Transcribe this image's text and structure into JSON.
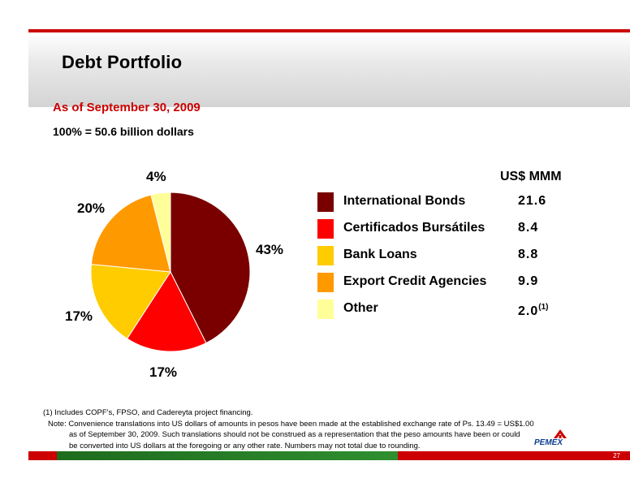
{
  "slide": {
    "title": "Debt Portfolio",
    "as_of": "As of September 30, 2009",
    "total": "100% = 50.6 billion dollars",
    "page_number": "27"
  },
  "colors": {
    "accent_red": "#cc0000",
    "green": "#2f8f2f"
  },
  "chart_data": {
    "type": "pie",
    "unit_header": "US$ MMM",
    "series": [
      {
        "name": "International Bonds",
        "value": 21.6,
        "value_label": "21.6",
        "percent_label": "43%",
        "color": "#7a0000"
      },
      {
        "name": "Certificados Bursátiles",
        "value": 8.4,
        "value_label": "8.4",
        "percent_label": "17%",
        "color": "#ff0000"
      },
      {
        "name": "Bank Loans",
        "value": 8.8,
        "value_label": "8.8",
        "percent_label": "17%",
        "color": "#ffcc00"
      },
      {
        "name": "Export Credit Agencies",
        "value": 9.9,
        "value_label": "9.9",
        "percent_label": "20%",
        "color": "#ff9900"
      },
      {
        "name": "Other",
        "value": 2.0,
        "value_label": "2.0",
        "value_note": "(1)",
        "percent_label": "4%",
        "color": "#ffff99"
      }
    ]
  },
  "footnotes": {
    "note1": "(1) Includes COPF's, FPSO, and Cadereyta project financing.",
    "note2_line1": "Note: Convenience translations into US dollars of amounts in pesos have been made at the established exchange rate of Ps. 13.49 = US$1.00",
    "note2_line2": "as of September 30, 2009. Such translations should not be construed as a representation that the peso amounts have been or could",
    "note2_line3": "be converted into US dollars at the foregoing or any other rate.   Numbers may not total due to rounding."
  },
  "logo": {
    "text": "PEMEX"
  }
}
